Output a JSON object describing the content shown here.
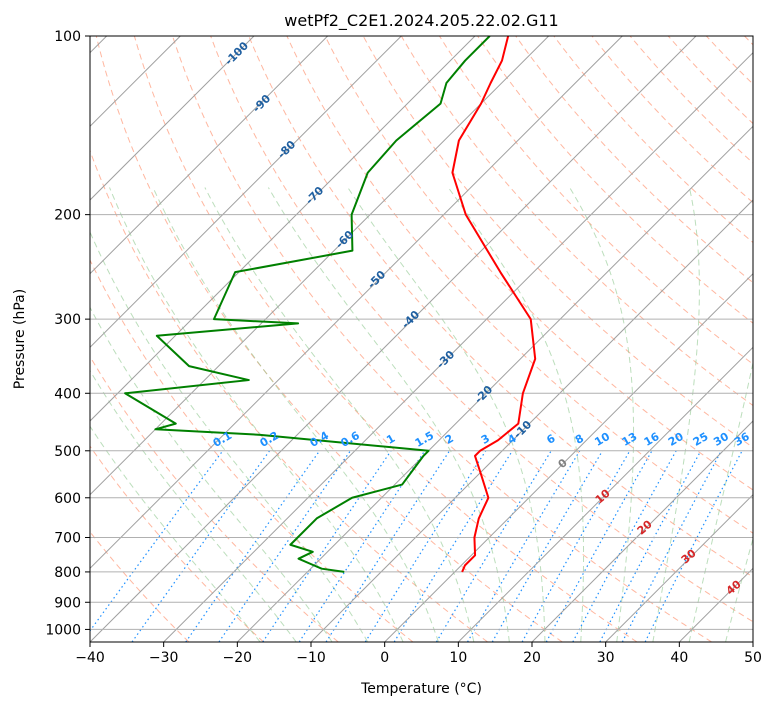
{
  "chart_data": {
    "type": "line",
    "title": "wetPf2_C2E1.2024.205.22.02.G11",
    "xlabel": "Temperature (°C)",
    "ylabel": "Pressure (hPa)",
    "xlim": [
      -40,
      50
    ],
    "ylim": [
      1050,
      100
    ],
    "y_scale": "log",
    "x_ticks": [
      -40,
      -30,
      -20,
      -10,
      0,
      10,
      20,
      30,
      40,
      50
    ],
    "x_tick_labels": [
      "−40",
      "−30",
      "−20",
      "−10",
      "0",
      "10",
      "20",
      "30",
      "40",
      "50"
    ],
    "y_ticks": [
      100,
      200,
      300,
      400,
      500,
      600,
      700,
      800,
      900,
      1000
    ],
    "y_tick_labels": [
      "100",
      "200",
      "300",
      "400",
      "500",
      "600",
      "700",
      "800",
      "900",
      "1000"
    ],
    "grid": true,
    "skew": 1.0,
    "colors": {
      "temperature": "#ff0000",
      "dewpoint": "#008000",
      "isotherm": "#a0a0a0",
      "dry_adiabat": "#ff9f80",
      "moist_adiabat": "#90c890",
      "mixing_ratio": "#1e90ff",
      "dry_adiabat_label": "#1f5fa0",
      "moist_adiabat_label": "#d62728",
      "moist_zero_label": "#808080"
    },
    "series": [
      {
        "name": "",
        "role": "temperature",
        "pressure": [
          100,
          110,
          120,
          130,
          150,
          170,
          200,
          250,
          300,
          350,
          400,
          450,
          480,
          500,
          510,
          550,
          600,
          650,
          700,
          750,
          780,
          800
        ],
        "temperature": [
          -65.5,
          -63.0,
          -61.5,
          -60.0,
          -58.0,
          -54.5,
          -47.0,
          -34.5,
          -24.0,
          -18.0,
          -15.0,
          -11.5,
          -12.0,
          -13.0,
          -13.0,
          -9.5,
          -5.5,
          -4.0,
          -2.0,
          0.5,
          0.5,
          1.0
        ]
      },
      {
        "name": "",
        "role": "dewpoint",
        "pressure": [
          100,
          110,
          120,
          130,
          150,
          170,
          200,
          230,
          250,
          300,
          305,
          320,
          360,
          380,
          400,
          450,
          460,
          470,
          500,
          510,
          570,
          600,
          650,
          700,
          720,
          740,
          760,
          780,
          790,
          800
        ],
        "temperature": [
          -68.0,
          -68.0,
          -67.5,
          -65.5,
          -66.5,
          -66.0,
          -62.5,
          -57.5,
          -70.5,
          -67.0,
          -55.0,
          -72.5,
          -64.0,
          -54.0,
          -69.0,
          -58.0,
          -60.0,
          -45.0,
          -20.0,
          -20.0,
          -19.0,
          -24.0,
          -26.0,
          -26.0,
          -26.0,
          -22.0,
          -23.0,
          -20.0,
          -18.5,
          -15.0
        ]
      }
    ],
    "isotherm_labels": [
      {
        "value": -100,
        "text": "-100"
      },
      {
        "value": -90,
        "text": "-90"
      },
      {
        "value": -80,
        "text": "-80"
      },
      {
        "value": -70,
        "text": "-70"
      },
      {
        "value": -60,
        "text": "-60"
      },
      {
        "value": -50,
        "text": "-50"
      },
      {
        "value": -40,
        "text": "-40"
      },
      {
        "value": -30,
        "text": "-30"
      },
      {
        "value": -20,
        "text": "-20"
      },
      {
        "value": -10,
        "text": "-10"
      }
    ],
    "mixing_ratios": [
      0.1,
      0.2,
      0.4,
      0.6,
      1,
      1.5,
      2,
      3,
      4,
      6,
      8,
      10,
      13,
      16,
      20,
      25,
      30,
      36
    ],
    "mixing_ratio_labels": [
      "0.1",
      "0.2",
      "0.4",
      "0.6",
      "1",
      "1.5",
      "2",
      "3",
      "4",
      "6",
      "8",
      "10",
      "13",
      "16",
      "20",
      "25",
      "30",
      "36"
    ],
    "moist_adiabat_labels": [
      {
        "value": 0,
        "text": "0"
      },
      {
        "value": 10,
        "text": "10"
      },
      {
        "value": 20,
        "text": "20"
      },
      {
        "value": 30,
        "text": "30"
      },
      {
        "value": 40,
        "text": "40"
      }
    ]
  }
}
